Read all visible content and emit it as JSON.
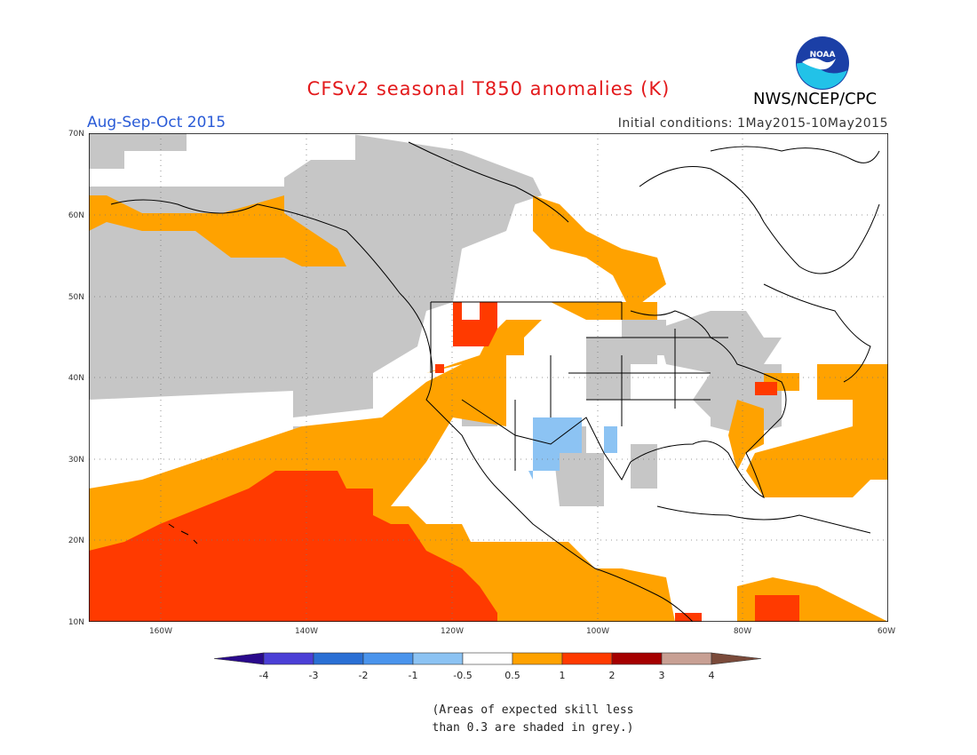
{
  "header": {
    "title": "CFSv2 seasonal T850 anomalies (K)",
    "season": "Aug-Sep-Oct 2015",
    "initial_conditions": "Initial conditions: 1May2015-10May2015",
    "organization": "NWS/NCEP/CPC",
    "logo_text": "NOAA",
    "logo_icon": "noaa-logo"
  },
  "map": {
    "lon_labels": [
      "160W",
      "140W",
      "120W",
      "100W",
      "80W",
      "60W"
    ],
    "lat_labels": [
      "70N",
      "60N",
      "50N",
      "40N",
      "30N",
      "20N",
      "10N"
    ],
    "gridlines": "dotted",
    "lon_range": [
      "170W",
      "60W"
    ],
    "lat_range": [
      "10N",
      "70N"
    ]
  },
  "colorbar": {
    "labels": [
      "-4",
      "-3",
      "-2",
      "-1",
      "-0.5",
      "0.5",
      "1",
      "2",
      "3",
      "4"
    ],
    "colors": [
      "#2a0a8c",
      "#4b3fd6",
      "#2a6fd4",
      "#4a94ec",
      "#8cc3f3",
      "#ffffff",
      "#ffa200",
      "#ff3a00",
      "#a50000",
      "#c8a094",
      "#7a4a3a"
    ]
  },
  "legend_note": {
    "line1": "(Areas of expected skill less",
    "line2": "than 0.3 are shaded in grey.)",
    "grey_color": "#c6c6c6"
  }
}
